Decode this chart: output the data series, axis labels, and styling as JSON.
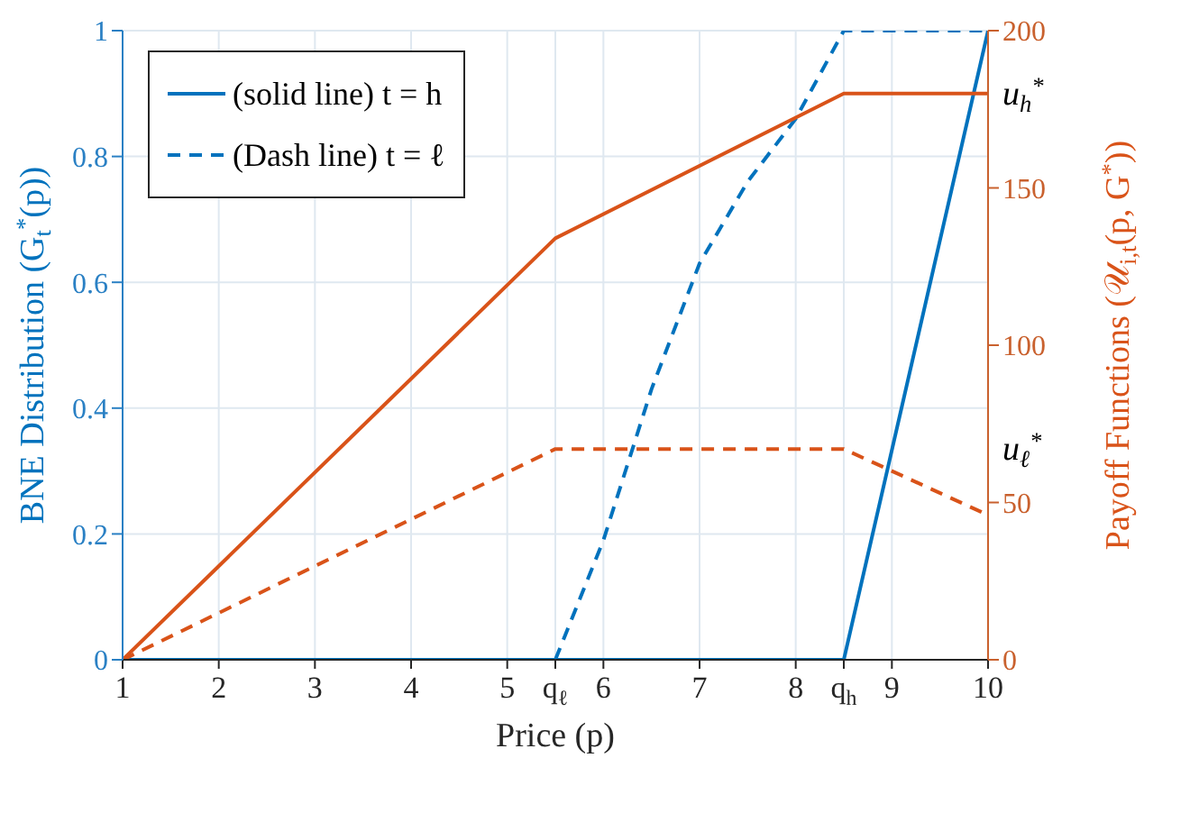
{
  "chart_data": {
    "type": "line",
    "xlabel": "Price (p)",
    "ylabel": "BNE Distribution (G$_{t}$$^{*}$(p))",
    "y2label": "Payoff Functions (𝒰$_{i,t}$(p, G$^{*}$))",
    "xlim": [
      1,
      10
    ],
    "xticks": [
      1,
      2,
      3,
      4,
      5,
      {
        "value": 5.5,
        "label": "q$_{ℓ}$"
      },
      6,
      7,
      8,
      {
        "value": 8.5,
        "label": "q$_{h}$"
      },
      9,
      10
    ],
    "ylim": [
      0,
      1
    ],
    "yticks": [
      0,
      0.2,
      0.4,
      0.6,
      0.8,
      1
    ],
    "y2lim": [
      0,
      200
    ],
    "y2ticks": [
      0,
      50,
      100,
      150,
      200
    ],
    "grid": true,
    "legend": "top left",
    "marker": "none",
    "series": [
      {
        "name": "(solid line) t = h",
        "color": "#0072bd",
        "line_style": "solid",
        "x": [
          1,
          8.5,
          10
        ],
        "values": [
          0,
          0,
          1
        ]
      },
      {
        "name": "(Dash line) t = ℓ",
        "color": "#0072bd",
        "line_style": "dashed",
        "x": [
          1,
          5.5,
          6,
          6.5,
          7,
          7.5,
          8,
          8.5,
          10
        ],
        "values": [
          0,
          0,
          0.19,
          0.43,
          0.63,
          0.76,
          0.86,
          1,
          1
        ]
      },
      {
        "color": "#d95319",
        "line_style": "solid",
        "axis": "y2",
        "x": [
          1,
          5.5,
          8.5,
          10
        ],
        "values": [
          0,
          134,
          180,
          180
        ]
      },
      {
        "color": "#d95319",
        "line_style": "dashed",
        "axis": "y2",
        "x": [
          1,
          5.5,
          8.5,
          10
        ],
        "values": [
          0,
          67,
          67,
          46
        ]
      }
    ],
    "annotations": [
      "u$_{h}$$^{*}$",
      "u$_{ℓ}$$^{*}$"
    ]
  }
}
